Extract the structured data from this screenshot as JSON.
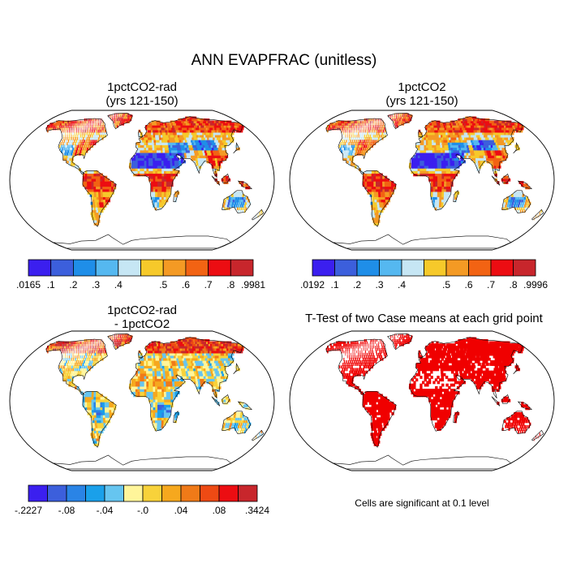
{
  "figure": {
    "title": "ANN EVAPFRAC (unitless)"
  },
  "panels": [
    {
      "id": "tl",
      "title_line1": "1pctCO2-rad",
      "title_line2": "(yrs 121-150)",
      "type": "field",
      "palette": "sequential"
    },
    {
      "id": "tr",
      "title_line1": "1pctCO2",
      "title_line2": "(yrs 121-150)",
      "type": "field",
      "palette": "sequential"
    },
    {
      "id": "bl",
      "title_line1": "1pctCO2-rad",
      "title_line2": "- 1pctCO2",
      "type": "difference",
      "palette": "diverging"
    },
    {
      "id": "br",
      "title_line1": "T-Test of two Case means at each grid point",
      "title_line2": "",
      "type": "significance",
      "palette": "red"
    }
  ],
  "colorbars": {
    "tl": {
      "labels": [
        ".0165",
        ".1",
        ".2",
        ".3",
        ".4",
        ".5",
        ".6",
        ".7",
        ".8",
        ".9981"
      ],
      "colors": [
        "#3b1fef",
        "#3c5fdc",
        "#1f8ee8",
        "#55b8f0",
        "#c6e6f4",
        "#f6c92a",
        "#f49a24",
        "#f26313",
        "#ec0d12",
        "#c8262c"
      ]
    },
    "tr": {
      "labels": [
        ".0192",
        ".1",
        ".2",
        ".3",
        ".4",
        ".5",
        ".6",
        ".7",
        ".8",
        ".9996"
      ],
      "colors": [
        "#3b1fef",
        "#3c5fdc",
        "#1f8ee8",
        "#55b8f0",
        "#c6e6f4",
        "#f6c92a",
        "#f49a24",
        "#f26313",
        "#ec0d12",
        "#c8262c"
      ]
    },
    "bl": {
      "labels": [
        "-.2227",
        "-.08",
        "-.04",
        "-.0",
        ".04",
        ".08",
        ".3424"
      ],
      "colors": [
        "#3b1fef",
        "#3c5fdc",
        "#2a84e6",
        "#1aa0ea",
        "#66c5f0",
        "#fff59a",
        "#f8d23a",
        "#f6a81e",
        "#f07a18",
        "#ee4a14",
        "#ec0d12",
        "#c8262c"
      ]
    }
  },
  "significance_note": "Cells are significant at 0.1 level",
  "colors": {
    "significant": "#f00000"
  }
}
